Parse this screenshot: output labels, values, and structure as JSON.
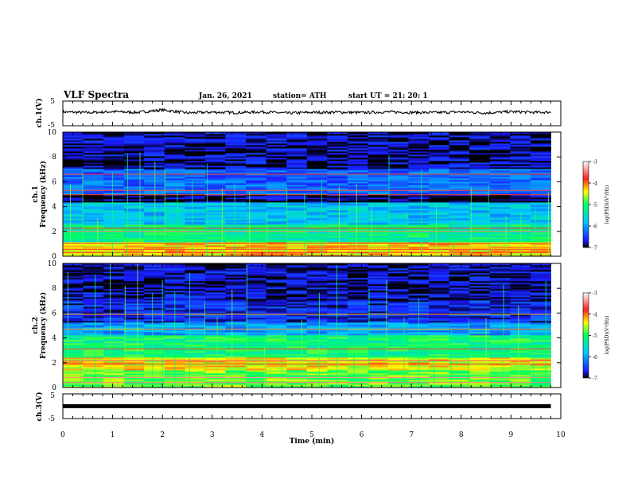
{
  "header": {
    "title": "VLF Spectra",
    "date": "Jan. 26, 2021",
    "station": "station= ATH",
    "start": "start  UT  =   21: 20: 1"
  },
  "axes": {
    "time_label": "Time  (min)",
    "ch1_voltage_label": "ch.1(V)",
    "ch2_spec_label_top": "ch.2",
    "ch1_spec_label_top": "ch.1",
    "freq_label": "Frequency  (kHz)",
    "ch3_voltage_label": "ch.3(V)",
    "x_ticks": [
      "0",
      "1",
      "2",
      "3",
      "4",
      "5",
      "6",
      "7",
      "8",
      "9",
      "10"
    ],
    "freq_ticks": [
      "0",
      "2",
      "4",
      "6",
      "8",
      "10"
    ],
    "volt_ticks": [
      "5",
      "-5"
    ],
    "colorbar_ticks": [
      "-3",
      "-4",
      "-5",
      "-6",
      "-7"
    ],
    "colorbar_label": "log(PSD)(V²/Hz)"
  },
  "chart_data": [
    {
      "type": "line",
      "name": "ch1-waveform",
      "xlabel": "Time  (min)",
      "ylabel": "ch.1(V)",
      "xlim": [
        0,
        10
      ],
      "ylim": [
        -5,
        5
      ],
      "x": [
        0,
        0.5,
        1,
        1.5,
        2,
        2.5,
        3,
        3.5,
        4,
        4.5,
        5,
        5.5,
        6,
        6.5,
        7,
        7.5,
        8,
        8.5,
        9,
        9.5,
        9.8
      ],
      "y": [
        0.6,
        0.3,
        0.7,
        0.4,
        1.4,
        0.2,
        0.5,
        0.3,
        0.6,
        0.1,
        0.4,
        0.5,
        0.3,
        0.6,
        0.4,
        0.3,
        0.6,
        0.2,
        0.7,
        0.4,
        0.5
      ]
    },
    {
      "type": "heatmap",
      "name": "ch1-spectrogram",
      "xlabel": "Time  (min)",
      "ylabel": "Frequency  (kHz)",
      "xlim": [
        0,
        10
      ],
      "ylim": [
        0,
        10
      ],
      "colorbar": {
        "label": "log(PSD)(V²/Hz)",
        "range": [
          -7,
          -3
        ]
      },
      "bands_khz": [
        {
          "from": 0,
          "to": 1.2,
          "level": -4.3
        },
        {
          "from": 1.2,
          "to": 2.6,
          "level": -5.2
        },
        {
          "from": 2.6,
          "to": 4.3,
          "level": -5.8
        },
        {
          "from": 4.3,
          "to": 5.0,
          "level": -6.9
        },
        {
          "from": 5.0,
          "to": 7.0,
          "level": -6.3
        },
        {
          "from": 7.0,
          "to": 10,
          "level": -6.8
        }
      ],
      "horizontal_lines_khz": [
        0.3,
        0.55,
        0.75,
        1.05,
        2.0,
        2.25,
        4.95,
        5.3,
        6.6
      ],
      "spike_times_min": [
        0.15,
        0.4,
        0.7,
        1.0,
        1.3,
        1.55,
        1.85,
        2.05,
        2.3,
        2.6,
        2.9,
        3.2,
        3.45,
        3.75,
        4.1,
        4.5,
        4.85,
        5.2,
        5.55,
        5.9,
        6.2,
        6.55,
        6.9,
        7.2,
        7.5,
        7.85,
        8.2,
        8.55,
        8.9,
        9.2,
        9.5,
        9.75
      ]
    },
    {
      "type": "heatmap",
      "name": "ch2-spectrogram",
      "xlabel": "Time  (min)",
      "ylabel": "Frequency  (kHz)",
      "xlim": [
        0,
        10
      ],
      "ylim": [
        0,
        10
      ],
      "colorbar": {
        "label": "log(PSD)(V²/Hz)",
        "range": [
          -7,
          -3
        ]
      },
      "bands_khz": [
        {
          "from": 0,
          "to": 1.4,
          "level": -4.8
        },
        {
          "from": 1.4,
          "to": 2.4,
          "level": -4.4
        },
        {
          "from": 2.4,
          "to": 4.2,
          "level": -5.1
        },
        {
          "from": 4.2,
          "to": 5.2,
          "level": -6.0
        },
        {
          "from": 5.2,
          "to": 7.0,
          "level": -6.6
        },
        {
          "from": 7.0,
          "to": 10,
          "level": -6.8
        }
      ],
      "horizontal_lines_khz": [
        0.4,
        0.8,
        1.9,
        2.15,
        3.1,
        4.7,
        5.9
      ],
      "spike_times_min": [
        0.1,
        0.35,
        0.65,
        0.95,
        1.25,
        1.5,
        1.8,
        2.0,
        2.25,
        2.55,
        2.85,
        3.1,
        3.4,
        3.7,
        4.05,
        4.4,
        4.8,
        5.15,
        5.5,
        5.85,
        6.15,
        6.5,
        6.85,
        7.15,
        7.45,
        7.8,
        8.15,
        8.5,
        8.85,
        9.15,
        9.45,
        9.7
      ]
    },
    {
      "type": "line",
      "name": "ch3-waveform",
      "xlabel": "Time  (min)",
      "ylabel": "ch.3(V)",
      "xlim": [
        0,
        10
      ],
      "ylim": [
        -5,
        5
      ],
      "x": [
        0,
        9.8
      ],
      "y": [
        0,
        0
      ]
    }
  ]
}
